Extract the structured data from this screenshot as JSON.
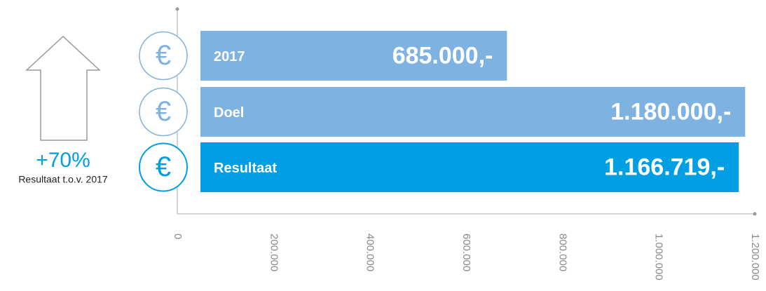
{
  "chart_data": {
    "type": "bar",
    "orientation": "horizontal",
    "categories": [
      "2017",
      "Doel",
      "Resultaat"
    ],
    "values": [
      685000,
      1180000,
      1166719
    ],
    "value_labels": [
      "685.000,-",
      "1.180.000,-",
      "1.166.719,-"
    ],
    "colors": [
      "#7eb2e0",
      "#7eb2e0",
      "#009fe3"
    ],
    "icon_label": "€",
    "annotation": "+70%",
    "annotation_caption": "Resultaat t.o.v. 2017",
    "xlim": [
      0,
      1200000
    ],
    "xticks": [
      0,
      {
        "value": 200000,
        "label": "200.000"
      },
      {
        "value": 400000,
        "label": "400.000"
      },
      {
        "value": 600000,
        "label": "600.000"
      },
      {
        "value": 800000,
        "label": "800.000"
      },
      {
        "value": 1000000,
        "label": "1.000.000"
      },
      {
        "value": 1200000,
        "label": "1.200.000"
      }
    ]
  }
}
